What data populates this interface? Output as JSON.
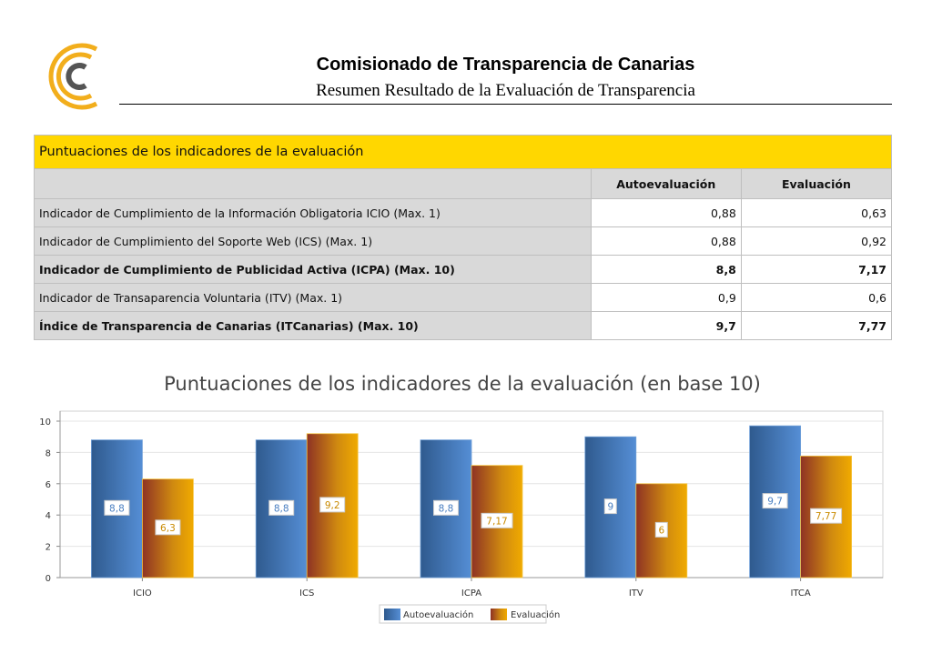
{
  "header": {
    "logo_icon": "ccc-logo-icon",
    "title": "Comisionado de Transparencia de Canarias",
    "subtitle": "Resumen Resultado de la Evaluación de Transparencia"
  },
  "table": {
    "caption": "Puntuaciones de los indicadores de la evaluación",
    "columns": [
      "",
      "Autoevaluación",
      "Evaluación"
    ],
    "rows": [
      {
        "label": "Indicador de Cumplimiento de la Información Obligatoria ICIO (Max. 1)",
        "auto": "0,88",
        "eval": "0,63",
        "bold": false
      },
      {
        "label": "Indicador de Cumplimiento del Soporte Web (ICS) (Max. 1)",
        "auto": "0,88",
        "eval": "0,92",
        "bold": false
      },
      {
        "label": "Indicador de Cumplimiento de Publicidad Activa (ICPA) (Max. 10)",
        "auto": "8,8",
        "eval": "7,17",
        "bold": true
      },
      {
        "label": "Indicador de Transaparencia Voluntaria (ITV) (Max. 1)",
        "auto": "0,9",
        "eval": "0,6",
        "bold": false
      },
      {
        "label": "Índice de Transparencia de Canarias (ITCanarias) (Max. 10)",
        "auto": "9,7",
        "eval": "7,77",
        "bold": true
      }
    ],
    "colors": {
      "caption_bg": "#ffd700",
      "header_bg": "#d9d9d9"
    }
  },
  "chart_data": {
    "type": "bar",
    "title": "Puntuaciones de los indicadores de la evaluación (en base 10)",
    "categories": [
      "ICIO",
      "ICS",
      "ICPA",
      "ITV",
      "ITCA"
    ],
    "series": [
      {
        "name": "Autoevaluación",
        "values": [
          8.8,
          8.8,
          8.8,
          9,
          9.7
        ],
        "labels": [
          "8,8",
          "8,8",
          "8,8",
          "9",
          "9,7"
        ],
        "color": "#4a7fc1"
      },
      {
        "name": "Evaluación",
        "values": [
          6.3,
          9.2,
          7.17,
          6,
          7.77
        ],
        "labels": [
          "6,3",
          "9,2",
          "7,17",
          "6",
          "7,77"
        ],
        "color": "#e0a000"
      }
    ],
    "ylim": [
      0,
      10
    ],
    "yticks": [
      "0",
      "2",
      "4",
      "6",
      "8",
      "10"
    ],
    "grid": true,
    "legend": "bottom-center"
  }
}
